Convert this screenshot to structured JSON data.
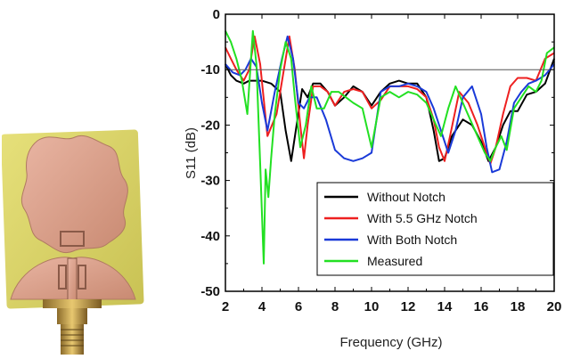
{
  "photo": {
    "description_icon": "antenna-prototype-photo-icon"
  },
  "chart_data": {
    "type": "line",
    "xlabel": "Frequency (GHz)",
    "ylabel": "S11 (dB)",
    "xlim": [
      2,
      20
    ],
    "ylim": [
      -50,
      0
    ],
    "xticks": [
      "2",
      "4",
      "6",
      "8",
      "10",
      "12",
      "14",
      "16",
      "18",
      "20"
    ],
    "yticks": [
      "0",
      "-10",
      "-20",
      "-30",
      "-40",
      "-50"
    ],
    "reference_line_y": -10,
    "grid": false,
    "legend_position": "bottom-right",
    "series": [
      {
        "name": "Without Notch",
        "color": "#000000",
        "x": [
          2,
          2.3,
          2.6,
          3,
          3.3,
          3.6,
          4,
          4.5,
          5,
          5.3,
          5.6,
          5.9,
          6.2,
          6.5,
          6.8,
          7.2,
          7.6,
          8,
          8.5,
          9,
          9.5,
          10,
          10.5,
          11,
          11.5,
          12,
          12.5,
          13,
          13.4,
          13.7,
          14,
          14.4,
          15,
          15.5,
          16,
          16.4,
          16.8,
          17.2,
          17.6,
          18,
          18.5,
          19,
          19.5,
          20
        ],
        "values": [
          -9,
          -11,
          -12,
          -12.5,
          -12,
          -12,
          -12,
          -12.5,
          -14,
          -21,
          -26.5,
          -20,
          -13.5,
          -15,
          -12.5,
          -12.5,
          -14,
          -16.5,
          -15,
          -13,
          -14,
          -16.5,
          -14,
          -12.5,
          -12,
          -12.5,
          -12.5,
          -15,
          -21,
          -26.5,
          -26,
          -22,
          -19,
          -20,
          -23,
          -26.5,
          -24,
          -20,
          -17.5,
          -17.5,
          -14.5,
          -14,
          -12.5,
          -8
        ]
      },
      {
        "name": "With 5.5 GHz Notch",
        "color": "#ee2020",
        "x": [
          2,
          2.3,
          2.6,
          3,
          3.3,
          3.6,
          3.9,
          4.3,
          4.8,
          5.2,
          5.5,
          5.8,
          6.1,
          6.3,
          6.5,
          6.8,
          7.2,
          7.6,
          8,
          8.5,
          9,
          9.5,
          10,
          10.5,
          11,
          11.5,
          12,
          12.5,
          13,
          13.4,
          13.7,
          14,
          14.3,
          14.8,
          15.3,
          15.8,
          16.2,
          16.5,
          16.8,
          17.2,
          17.6,
          18,
          18.5,
          19,
          19.5,
          20
        ],
        "values": [
          -6,
          -8,
          -10,
          -12,
          -10,
          -4,
          -9,
          -22,
          -18,
          -10,
          -4,
          -10,
          -20,
          -26,
          -20,
          -13,
          -13,
          -14,
          -16.5,
          -14,
          -13.5,
          -14,
          -17,
          -15.5,
          -13,
          -13,
          -13,
          -13.5,
          -15,
          -19,
          -24,
          -26.5,
          -22,
          -14,
          -16,
          -20,
          -24,
          -27,
          -24,
          -18,
          -13,
          -11.5,
          -11.5,
          -12,
          -8,
          -7
        ]
      },
      {
        "name": "With Both Notch",
        "color": "#1a3ad8",
        "x": [
          2,
          2.4,
          2.8,
          3.1,
          3.4,
          3.7,
          4,
          4.3,
          4.7,
          5.1,
          5.4,
          5.7,
          6,
          6.3,
          6.6,
          7,
          7.5,
          8,
          8.5,
          9,
          9.5,
          10,
          10.5,
          11,
          11.5,
          12,
          12.5,
          13,
          13.4,
          13.8,
          14.2,
          14.6,
          15,
          15.5,
          16,
          16.3,
          16.6,
          17,
          17.4,
          17.8,
          18.2,
          18.6,
          19,
          19.5,
          20
        ],
        "values": [
          -9,
          -10.5,
          -11,
          -10,
          -8,
          -9.5,
          -16,
          -21,
          -14,
          -8,
          -4,
          -8,
          -16,
          -17,
          -15,
          -15,
          -19,
          -24.5,
          -26,
          -26.5,
          -26,
          -25,
          -14,
          -13,
          -13,
          -12.5,
          -13,
          -14,
          -17,
          -21,
          -25,
          -21,
          -15,
          -13,
          -18,
          -24,
          -28.5,
          -28,
          -23,
          -16,
          -14,
          -12.5,
          -12,
          -11,
          -9
        ]
      },
      {
        "name": "Measured",
        "color": "#22e022",
        "x": [
          2,
          2.3,
          2.6,
          2.9,
          3.2,
          3.5,
          3.7,
          3.9,
          4.1,
          4.2,
          4.35,
          4.5,
          4.7,
          5,
          5.3,
          5.6,
          5.8,
          6.1,
          6.4,
          6.7,
          7,
          7.4,
          7.8,
          8.2,
          8.6,
          9,
          9.5,
          10,
          10.5,
          11,
          11.5,
          12,
          12.5,
          13,
          13.4,
          13.8,
          14.2,
          14.6,
          15,
          15.4,
          15.8,
          16.2,
          16.5,
          16.8,
          17.1,
          17.4,
          17.8,
          18.2,
          18.6,
          19,
          19.3,
          19.6,
          20
        ],
        "values": [
          -3,
          -5,
          -8,
          -12,
          -18,
          -3,
          -9,
          -27,
          -45,
          -28,
          -33,
          -26,
          -18,
          -10,
          -5,
          -8,
          -15,
          -24,
          -20,
          -13,
          -17,
          -17,
          -14,
          -14,
          -15,
          -16,
          -17,
          -24,
          -15,
          -14,
          -15,
          -14,
          -14.5,
          -16,
          -19,
          -22,
          -17,
          -13,
          -16,
          -19,
          -22,
          -25,
          -26.5,
          -24,
          -22,
          -24.5,
          -17,
          -15,
          -13,
          -14,
          -12,
          -7,
          -6
        ]
      }
    ]
  }
}
